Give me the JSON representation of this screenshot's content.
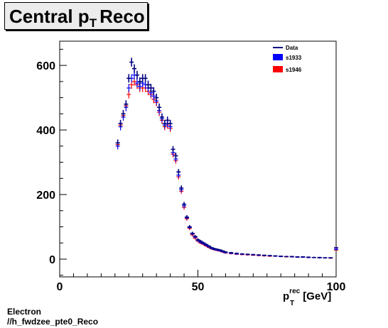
{
  "title": {
    "main": "Central p",
    "sub": "T",
    "rest": "Reco"
  },
  "footer": {
    "line1": "Electron",
    "line2": "//h_fwdzee_pte0_Reco"
  },
  "colors": {
    "data": "#000080",
    "s1933": "#0000ff",
    "s1946": "#ff0000"
  },
  "chart_data": {
    "type": "scatter",
    "title": "Central pT Reco",
    "xlabel": {
      "base": "p",
      "sub": "T",
      "sup": "rec",
      "unit": "[GeV]"
    },
    "ylabel": "",
    "xlim": [
      0,
      100
    ],
    "ylim": [
      -55,
      675
    ],
    "xticks": [
      0,
      50,
      100
    ],
    "yticks": [
      0,
      200,
      400,
      600
    ],
    "grid": false,
    "legend_position": "top-right",
    "legend": [
      {
        "name": "Data",
        "style": "line"
      },
      {
        "name": "s1933",
        "style": "box"
      },
      {
        "name": "s1946",
        "style": "box"
      }
    ],
    "x": [
      21,
      22,
      23,
      24,
      25,
      26,
      27,
      28,
      29,
      30,
      31,
      32,
      33,
      34,
      35,
      36,
      37,
      38,
      39,
      40,
      41,
      42,
      43,
      44,
      45,
      46,
      47,
      48,
      49,
      50,
      51,
      52,
      53,
      54,
      55,
      56,
      57,
      58,
      59,
      60,
      62,
      64,
      66,
      68,
      70,
      72,
      74,
      76,
      78,
      80,
      82,
      84,
      86,
      88,
      90,
      92,
      94,
      96,
      98,
      100
    ],
    "series": [
      {
        "name": "Data",
        "values": [
          360,
          420,
          450,
          480,
          560,
          610,
          590,
          570,
          550,
          560,
          560,
          540,
          530,
          520,
          500,
          470,
          440,
          420,
          430,
          420,
          340,
          320,
          270,
          220,
          170,
          130,
          100,
          80,
          70,
          60,
          55,
          50,
          45,
          40,
          35,
          32,
          30,
          28,
          25,
          22,
          20,
          18,
          16,
          15,
          14,
          13,
          12,
          11,
          10,
          9,
          8,
          8,
          7,
          7,
          6,
          5,
          5,
          4,
          4,
          35
        ]
      },
      {
        "name": "s1933",
        "values": [
          350,
          410,
          440,
          470,
          530,
          560,
          570,
          545,
          535,
          545,
          540,
          530,
          515,
          505,
          490,
          460,
          435,
          415,
          420,
          410,
          330,
          310,
          260,
          215,
          165,
          128,
          98,
          78,
          68,
          58,
          52,
          48,
          43,
          38,
          33,
          30,
          28,
          26,
          23,
          20,
          18,
          16,
          15,
          14,
          13,
          12,
          11,
          10,
          9,
          8,
          8,
          7,
          6,
          6,
          5,
          5,
          4,
          4,
          4,
          30
        ]
      },
      {
        "name": "s1946",
        "values": [
          355,
          415,
          445,
          475,
          510,
          540,
          550,
          540,
          530,
          530,
          530,
          520,
          510,
          495,
          485,
          455,
          430,
          410,
          415,
          405,
          325,
          305,
          255,
          210,
          160,
          125,
          95,
          75,
          65,
          56,
          50,
          46,
          41,
          36,
          32,
          29,
          27,
          25,
          22,
          19,
          17,
          15,
          14,
          13,
          12,
          11,
          10,
          9,
          9,
          8,
          7,
          7,
          6,
          6,
          5,
          5,
          4,
          4,
          3,
          28
        ]
      }
    ]
  }
}
